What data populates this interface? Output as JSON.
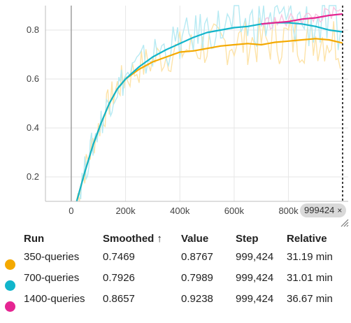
{
  "chart_data": {
    "type": "line",
    "xlim": [
      -95000,
      1020000
    ],
    "ylim": [
      0.1,
      0.9
    ],
    "x_ticks": [
      0,
      200000,
      400000,
      600000,
      800000
    ],
    "x_tick_labels": [
      "0",
      "200k",
      "400k",
      "600k",
      "800k"
    ],
    "y_ticks": [
      0.2,
      0.4,
      0.6,
      0.8
    ],
    "y_tick_labels": [
      "0.2",
      "0.4",
      "0.6",
      "0.8"
    ],
    "grid": true,
    "cursor_step": 999424,
    "series": [
      {
        "name": "350-queries",
        "color": "#f4a900",
        "raw_color": "#fde3a8",
        "x": [
          20000,
          50000,
          80000,
          110000,
          140000,
          170000,
          200000,
          250000,
          300000,
          350000,
          400000,
          450000,
          500000,
          550000,
          600000,
          650000,
          700000,
          750000,
          800000,
          850000,
          900000,
          950000,
          999424
        ],
        "y": [
          0.1,
          0.22,
          0.33,
          0.42,
          0.5,
          0.56,
          0.6,
          0.64,
          0.67,
          0.69,
          0.71,
          0.715,
          0.725,
          0.735,
          0.74,
          0.745,
          0.74,
          0.75,
          0.755,
          0.76,
          0.765,
          0.76,
          0.7469
        ]
      },
      {
        "name": "700-queries",
        "color": "#12b5cb",
        "raw_color": "#b6eaf3",
        "x": [
          20000,
          50000,
          80000,
          110000,
          140000,
          170000,
          200000,
          250000,
          300000,
          350000,
          400000,
          450000,
          500000,
          550000,
          600000,
          650000,
          700000,
          750000,
          800000,
          850000,
          900000,
          950000,
          999424
        ],
        "y": [
          0.1,
          0.22,
          0.33,
          0.42,
          0.5,
          0.56,
          0.6,
          0.65,
          0.69,
          0.72,
          0.745,
          0.77,
          0.79,
          0.8,
          0.81,
          0.815,
          0.825,
          0.83,
          0.83,
          0.825,
          0.815,
          0.8,
          0.7926
        ]
      },
      {
        "name": "1400-queries",
        "color": "#e52592",
        "raw_color": "#f7c4e0",
        "x": [
          700000,
          750000,
          800000,
          850000,
          900000,
          950000,
          999424
        ],
        "y": [
          0.825,
          0.83,
          0.835,
          0.845,
          0.85,
          0.86,
          0.8657
        ]
      }
    ]
  },
  "step_badge": {
    "label": "999424",
    "close": "×"
  },
  "table": {
    "headers": {
      "run": "Run",
      "smoothed": "Smoothed",
      "sort": "↑",
      "value": "Value",
      "step": "Step",
      "relative": "Relative"
    },
    "rows": [
      {
        "color": "#f4a900",
        "run": "350-queries",
        "smoothed": "0.7469",
        "value": "0.8767",
        "step": "999,424",
        "relative": "31.19 min"
      },
      {
        "color": "#12b5cb",
        "run": "700-queries",
        "smoothed": "0.7926",
        "value": "0.7989",
        "step": "999,424",
        "relative": "31.01 min"
      },
      {
        "color": "#e52592",
        "run": "1400-queries",
        "smoothed": "0.8657",
        "value": "0.9238",
        "step": "999,424",
        "relative": "36.67 min"
      }
    ]
  }
}
